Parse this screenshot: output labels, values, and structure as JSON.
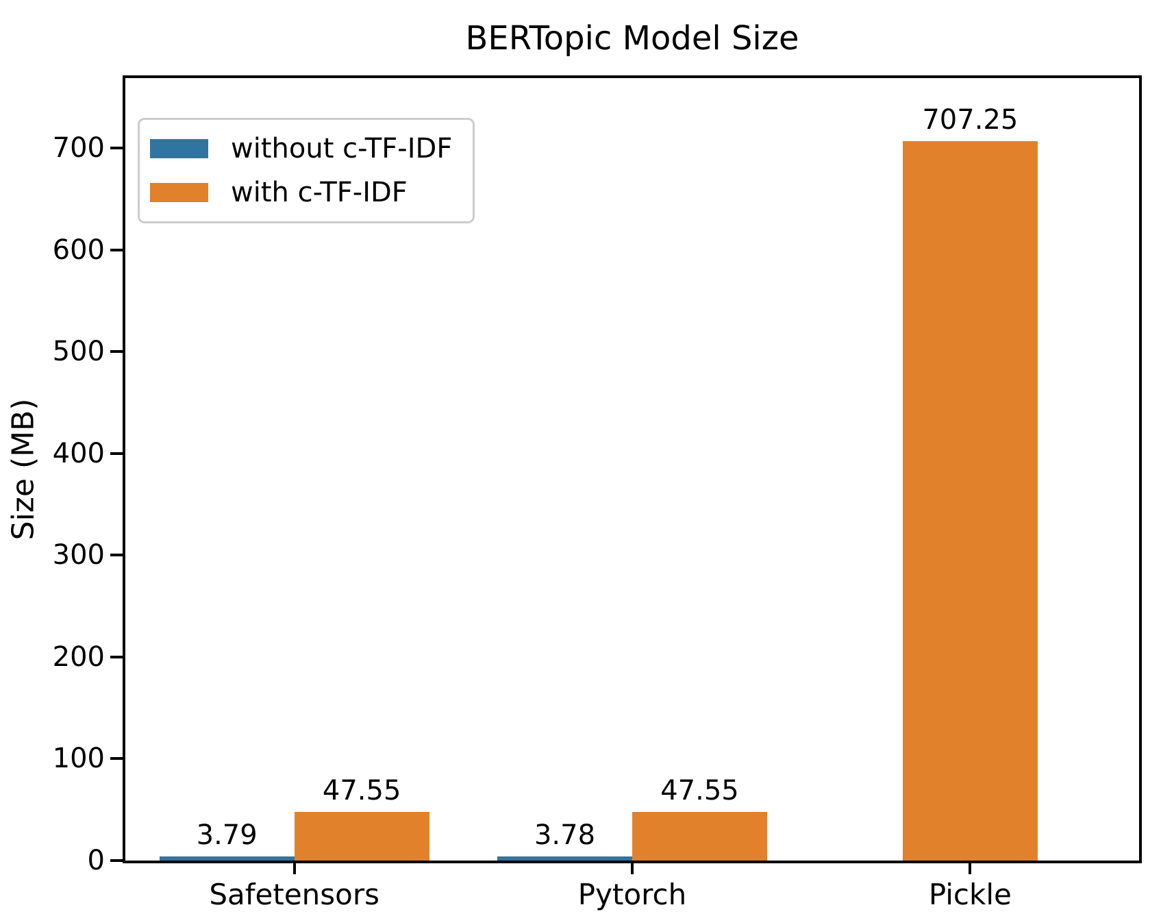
{
  "chart_data": {
    "type": "bar",
    "title": "BERTopic Model Size",
    "xlabel": "",
    "ylabel": "Size (MB)",
    "categories": [
      "Safetensors",
      "Pytorch",
      "Pickle"
    ],
    "series": [
      {
        "name": "without c-TF-IDF",
        "color": "#3274A1",
        "values": [
          3.79,
          3.78,
          null
        ],
        "value_labels": [
          "3.79",
          "3.78",
          null
        ]
      },
      {
        "name": "with c-TF-IDF",
        "color": "#E1812C",
        "values": [
          47.55,
          47.55,
          707.25
        ],
        "value_labels": [
          "47.55",
          "47.55",
          "707.25"
        ]
      }
    ],
    "y_ticks": [
      0,
      100,
      200,
      300,
      400,
      500,
      600,
      700
    ],
    "ylim": [
      0,
      769
    ],
    "grid": false,
    "legend_position": "upper left",
    "bar_value_labels_shown": true,
    "background_color": "#ffffff",
    "text_color": "#000000"
  }
}
